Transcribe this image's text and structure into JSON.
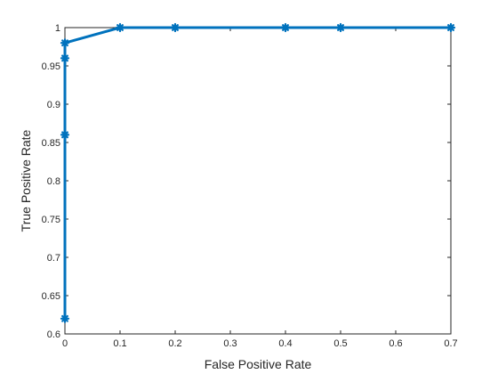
{
  "chart_data": {
    "type": "line",
    "title": "",
    "xlabel": "False Positive Rate",
    "ylabel": "True Positive Rate",
    "xlim": [
      0,
      0.7
    ],
    "ylim": [
      0.6,
      1
    ],
    "xticks": [
      0,
      0.1,
      0.2,
      0.3,
      0.4,
      0.5,
      0.6,
      0.7
    ],
    "xtick_labels": [
      "0",
      "0.1",
      "0.2",
      "0.3",
      "0.4",
      "0.5",
      "0.6",
      "0.7"
    ],
    "yticks": [
      0.6,
      0.65,
      0.7,
      0.75,
      0.8,
      0.85,
      0.9,
      0.95,
      1
    ],
    "ytick_labels": [
      "0.6",
      "0.65",
      "0.7",
      "0.75",
      "0.8",
      "0.85",
      "0.9",
      "0.95",
      "1"
    ],
    "grid": false,
    "box": true,
    "series": [
      {
        "color": "#0072BD",
        "marker": "asterisk",
        "x": [
          0,
          0,
          0,
          0,
          0.1,
          0.2,
          0.4,
          0.5,
          0.7
        ],
        "y": [
          0.62,
          0.86,
          0.96,
          0.98,
          1,
          1,
          1,
          1,
          1
        ]
      }
    ]
  }
}
